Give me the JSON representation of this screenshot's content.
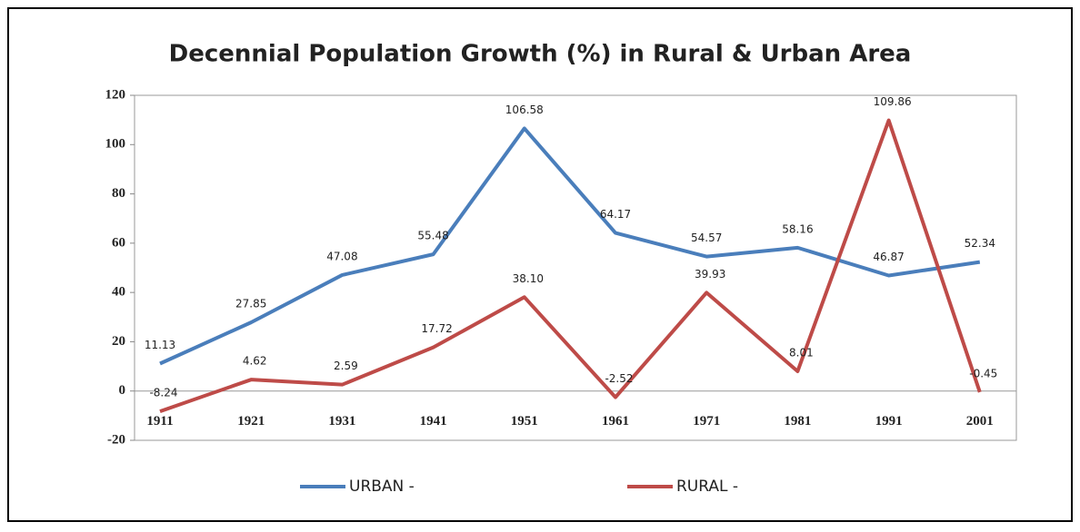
{
  "chart_data": {
    "type": "line",
    "title": "Decennial Population Growth (%) in Rural & Urban Area",
    "categories": [
      "1911",
      "1921",
      "1931",
      "1941",
      "1951",
      "1961",
      "1971",
      "1981",
      "1991",
      "2001"
    ],
    "series": [
      {
        "name": "URBAN -",
        "color": "#4a7ebb",
        "values": [
          11.13,
          27.85,
          47.08,
          55.48,
          106.58,
          64.17,
          54.57,
          58.16,
          46.87,
          52.34
        ],
        "value_labels": [
          "11.13",
          "27.85",
          "47.08",
          "55.48",
          "106.58",
          "64.17",
          "54.57",
          "58.16",
          "46.87",
          "52.34"
        ]
      },
      {
        "name": "RURAL -",
        "color": "#be4b48",
        "values": [
          -8.24,
          4.62,
          2.59,
          17.72,
          38.1,
          -2.52,
          39.93,
          8.01,
          109.86,
          -0.45
        ],
        "value_labels": [
          "-8.24",
          "4.62",
          "2.59",
          "17.72",
          "38.10",
          "-2.52",
          "39.93",
          "8.01",
          "109.86",
          "-0.45"
        ]
      }
    ],
    "ylim": [
      -20,
      120
    ],
    "yticks": [
      -20,
      0,
      20,
      40,
      60,
      80,
      100,
      120
    ],
    "legend": "bottom"
  }
}
